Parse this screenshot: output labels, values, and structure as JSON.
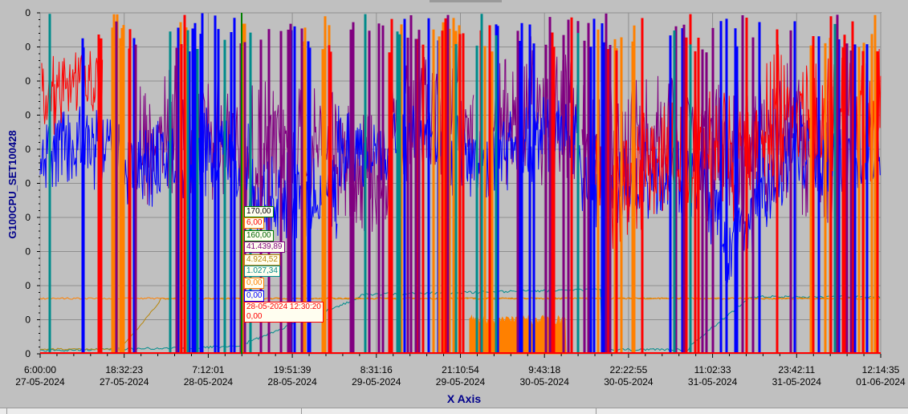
{
  "window": {
    "title_bar_visible": false
  },
  "chart_data": {
    "type": "line",
    "ylabel": "G100CPU_SET100428",
    "xlabel": "X Axis",
    "y_tick_labels": [
      "0",
      "0",
      "0",
      "0",
      "0",
      "0",
      "0",
      "0",
      "0",
      "0",
      "0"
    ],
    "x_ticks": [
      {
        "time": "6:00:00",
        "date": "27-05-2024"
      },
      {
        "time": "18:32:23",
        "date": "27-05-2024"
      },
      {
        "time": "7:12:01",
        "date": "28-05-2024"
      },
      {
        "time": "19:51:39",
        "date": "28-05-2024"
      },
      {
        "time": "8:31:16",
        "date": "29-05-2024"
      },
      {
        "time": "21:10:54",
        "date": "29-05-2024"
      },
      {
        "time": "9:43:18",
        "date": "30-05-2024"
      },
      {
        "time": "22:22:55",
        "date": "30-05-2024"
      },
      {
        "time": "11:02:33",
        "date": "31-05-2024"
      },
      {
        "time": "23:42:11",
        "date": "31-05-2024"
      },
      {
        "time": "12:14:35",
        "date": "01-06-2024"
      }
    ],
    "x_range": [
      "27-05-2024 6:00:00",
      "01-06-2024 12:14:35"
    ],
    "grid": true,
    "background": "#c0c0c0",
    "series_colors": {
      "red": "#ff0000",
      "blue": "#0000ff",
      "purple": "#800080",
      "orange": "#ff8000",
      "teal": "#008b8b",
      "gold": "#b8860b",
      "green": "#008000"
    },
    "cursor": {
      "timestamp": "28-05-2024 12:30:20",
      "values": [
        {
          "text": "170,00",
          "color": "#000000",
          "border": "#008000"
        },
        {
          "text": "6,00",
          "color": "#ff0000",
          "border": "#ff8000"
        },
        {
          "text": "160,00",
          "color": "#006400",
          "border": "#008000"
        },
        {
          "text": "41.439,89",
          "color": "#800080",
          "border": "#800080"
        },
        {
          "text": "4.924,52",
          "color": "#b8860b",
          "border": "#b8860b"
        },
        {
          "text": "1.027,34",
          "color": "#008b8b",
          "border": "#008b8b"
        },
        {
          "text": "0,00",
          "color": "#ff8000",
          "border": "#ff8000"
        },
        {
          "text": "0,00",
          "color": "#0000ff",
          "border": "#0000ff"
        },
        {
          "text": "0,00",
          "color": "#ff0000",
          "border": "#ff0000"
        }
      ]
    }
  }
}
